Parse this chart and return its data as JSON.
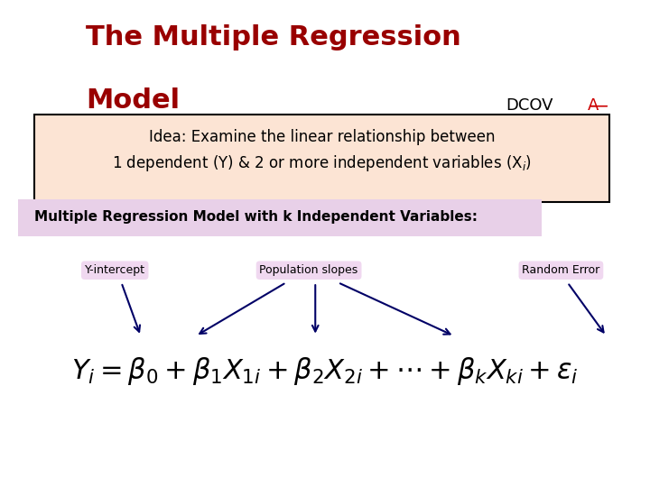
{
  "title_line1": "The Multiple Regression",
  "title_line2": "Model",
  "title_color": "#990000",
  "dcov_text": "DCOV",
  "dcov_a": "A",
  "dcov_color": "#000000",
  "dcov_a_color": "#cc0000",
  "idea_box_text_line1": "Idea: Examine the linear relationship between",
  "idea_box_text_line2": "1 dependent (Y) & 2 or more independent variables (X$_i$)",
  "idea_box_bg": "#fce4d4",
  "idea_box_border": "#000000",
  "section_label": "Multiple Regression Model with k Independent Variables:",
  "section_label_bg": "#e8d0e8",
  "section_label_color": "#000000",
  "annotation_y_intercept": "Y-intercept",
  "annotation_pop_slopes": "Population slopes",
  "annotation_random_error": "Random Error",
  "annotation_bg": "#f0d8f0",
  "annotation_color": "#000000",
  "arrow_color": "#000066",
  "bg_color": "#ffffff"
}
